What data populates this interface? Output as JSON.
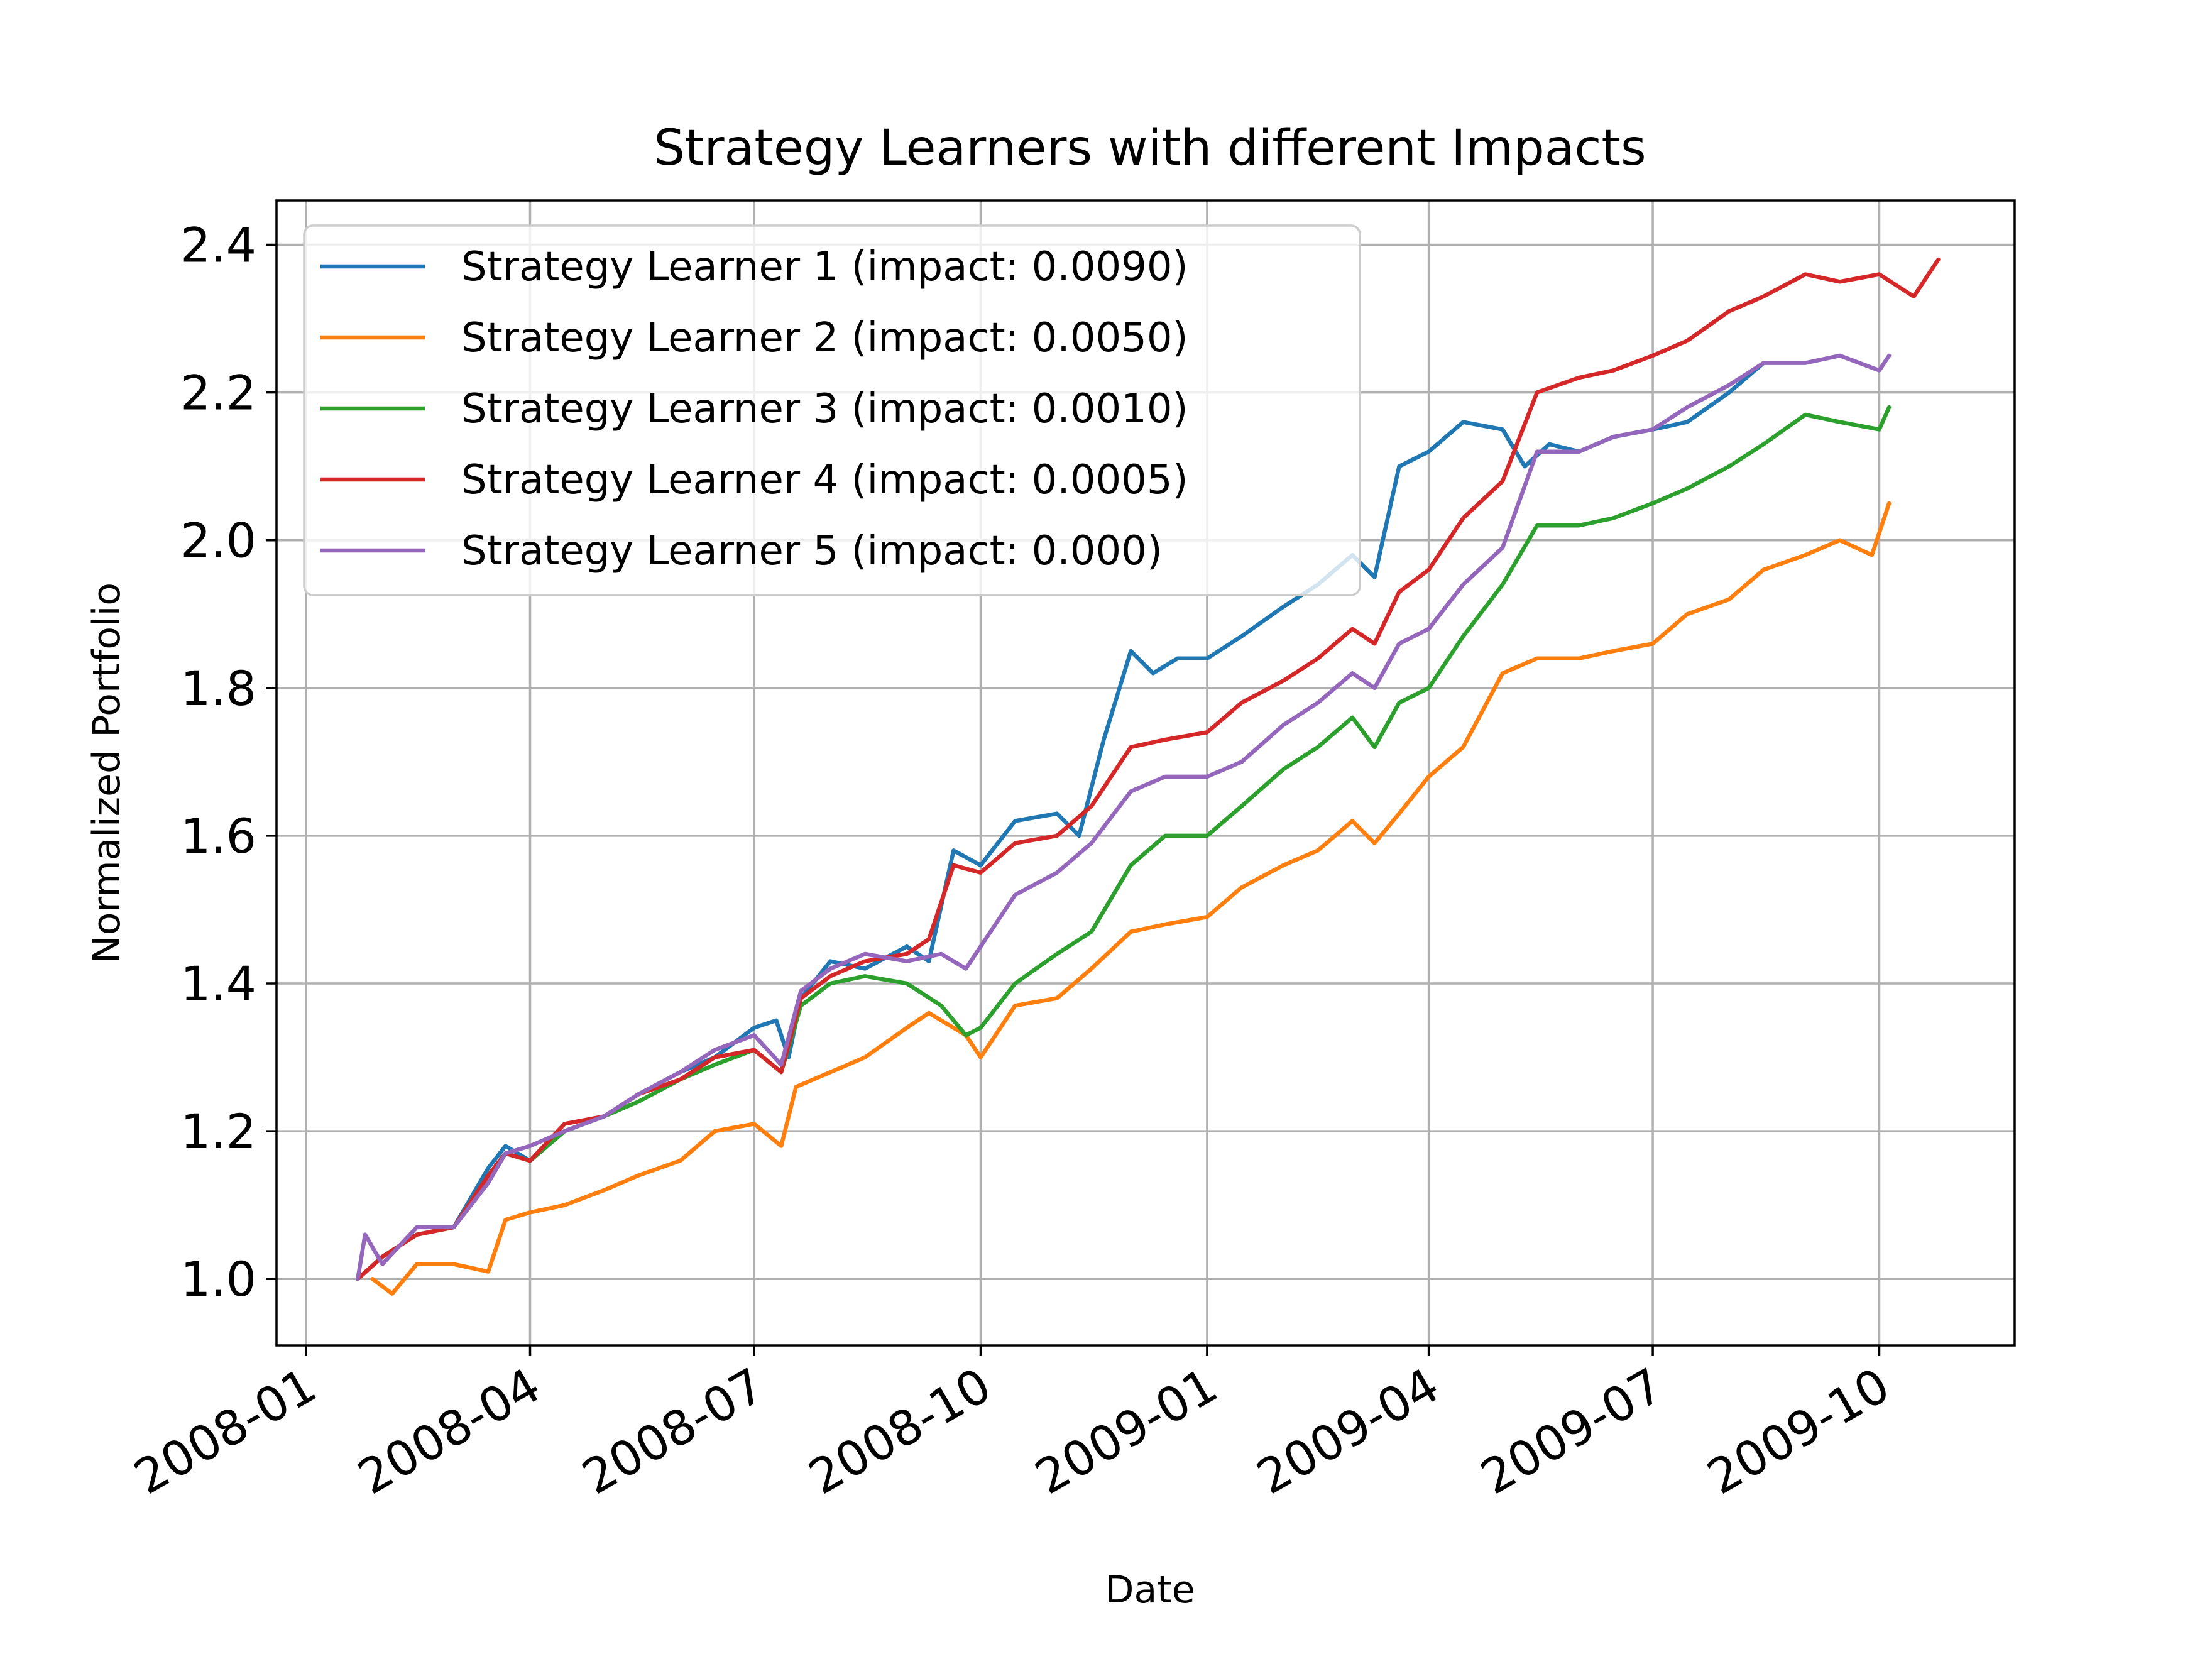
{
  "chart_data": {
    "type": "line",
    "title": "Strategy Learners with different Impacts",
    "xlabel": "Date",
    "ylabel": "Normalized Portfolio",
    "x_axis_type": "date",
    "xlim": [
      "2007-12-20",
      "2009-11-25"
    ],
    "ylim": [
      0.91,
      2.46
    ],
    "xticks": [
      "2008-01",
      "2008-04",
      "2008-07",
      "2008-10",
      "2009-01",
      "2009-04",
      "2009-07",
      "2009-10"
    ],
    "yticks": [
      1.0,
      1.2,
      1.4,
      1.6,
      1.8,
      2.0,
      2.2,
      2.4
    ],
    "ytick_labels": [
      "1.0",
      "1.2",
      "1.4",
      "1.6",
      "1.8",
      "2.0",
      "2.2",
      "2.4"
    ],
    "grid": true,
    "legend_position": "upper-left",
    "series": [
      {
        "name": "Strategy Learner 1 (impact: 0.0090)",
        "color": "#1f77b4",
        "points": [
          [
            "2008-01-22",
            1.0
          ],
          [
            "2008-02-01",
            1.03
          ],
          [
            "2008-02-15",
            1.06
          ],
          [
            "2008-03-01",
            1.07
          ],
          [
            "2008-03-15",
            1.15
          ],
          [
            "2008-03-22",
            1.18
          ],
          [
            "2008-04-01",
            1.16
          ],
          [
            "2008-04-15",
            1.2
          ],
          [
            "2008-05-01",
            1.22
          ],
          [
            "2008-05-15",
            1.25
          ],
          [
            "2008-06-01",
            1.28
          ],
          [
            "2008-06-15",
            1.3
          ],
          [
            "2008-07-01",
            1.34
          ],
          [
            "2008-07-10",
            1.35
          ],
          [
            "2008-07-15",
            1.3
          ],
          [
            "2008-07-20",
            1.38
          ],
          [
            "2008-08-01",
            1.43
          ],
          [
            "2008-08-15",
            1.42
          ],
          [
            "2008-09-01",
            1.45
          ],
          [
            "2008-09-10",
            1.43
          ],
          [
            "2008-09-20",
            1.58
          ],
          [
            "2008-10-01",
            1.56
          ],
          [
            "2008-10-15",
            1.62
          ],
          [
            "2008-11-01",
            1.63
          ],
          [
            "2008-11-10",
            1.6
          ],
          [
            "2008-11-20",
            1.73
          ],
          [
            "2008-12-01",
            1.85
          ],
          [
            "2008-12-10",
            1.82
          ],
          [
            "2008-12-20",
            1.84
          ],
          [
            "2009-01-01",
            1.84
          ],
          [
            "2009-01-15",
            1.87
          ],
          [
            "2009-02-01",
            1.91
          ],
          [
            "2009-02-15",
            1.94
          ],
          [
            "2009-03-01",
            1.98
          ],
          [
            "2009-03-10",
            1.95
          ],
          [
            "2009-03-20",
            2.1
          ],
          [
            "2009-04-01",
            2.12
          ],
          [
            "2009-04-15",
            2.16
          ],
          [
            "2009-05-01",
            2.15
          ],
          [
            "2009-05-10",
            2.1
          ],
          [
            "2009-05-20",
            2.13
          ],
          [
            "2009-06-01",
            2.12
          ],
          [
            "2009-06-15",
            2.14
          ],
          [
            "2009-07-01",
            2.15
          ],
          [
            "2009-07-15",
            2.16
          ],
          [
            "2009-08-01",
            2.2
          ],
          [
            "2009-08-15",
            2.24
          ]
        ]
      },
      {
        "name": "Strategy Learner 2 (impact: 0.0050)",
        "color": "#ff7f0e",
        "points": [
          [
            "2008-01-28",
            1.0
          ],
          [
            "2008-02-05",
            0.98
          ],
          [
            "2008-02-15",
            1.02
          ],
          [
            "2008-03-01",
            1.02
          ],
          [
            "2008-03-15",
            1.01
          ],
          [
            "2008-03-22",
            1.08
          ],
          [
            "2008-04-01",
            1.09
          ],
          [
            "2008-04-15",
            1.1
          ],
          [
            "2008-05-01",
            1.12
          ],
          [
            "2008-05-15",
            1.14
          ],
          [
            "2008-06-01",
            1.16
          ],
          [
            "2008-06-15",
            1.2
          ],
          [
            "2008-07-01",
            1.21
          ],
          [
            "2008-07-12",
            1.18
          ],
          [
            "2008-07-18",
            1.26
          ],
          [
            "2008-08-01",
            1.28
          ],
          [
            "2008-08-15",
            1.3
          ],
          [
            "2008-09-01",
            1.34
          ],
          [
            "2008-09-10",
            1.36
          ],
          [
            "2008-09-25",
            1.33
          ],
          [
            "2008-10-01",
            1.3
          ],
          [
            "2008-10-15",
            1.37
          ],
          [
            "2008-11-01",
            1.38
          ],
          [
            "2008-11-15",
            1.42
          ],
          [
            "2008-12-01",
            1.47
          ],
          [
            "2008-12-15",
            1.48
          ],
          [
            "2009-01-01",
            1.49
          ],
          [
            "2009-01-15",
            1.53
          ],
          [
            "2009-02-01",
            1.56
          ],
          [
            "2009-02-15",
            1.58
          ],
          [
            "2009-03-01",
            1.62
          ],
          [
            "2009-03-10",
            1.59
          ],
          [
            "2009-03-20",
            1.63
          ],
          [
            "2009-04-01",
            1.68
          ],
          [
            "2009-04-15",
            1.72
          ],
          [
            "2009-05-01",
            1.82
          ],
          [
            "2009-05-15",
            1.84
          ],
          [
            "2009-06-01",
            1.84
          ],
          [
            "2009-06-15",
            1.85
          ],
          [
            "2009-07-01",
            1.86
          ],
          [
            "2009-07-15",
            1.9
          ],
          [
            "2009-08-01",
            1.92
          ],
          [
            "2009-08-15",
            1.96
          ],
          [
            "2009-09-01",
            1.98
          ],
          [
            "2009-09-15",
            2.0
          ],
          [
            "2009-09-28",
            1.98
          ],
          [
            "2009-10-05",
            2.05
          ]
        ]
      },
      {
        "name": "Strategy Learner 3 (impact: 0.0010)",
        "color": "#2ca02c",
        "points": [
          [
            "2008-01-22",
            1.0
          ],
          [
            "2008-02-01",
            1.03
          ],
          [
            "2008-02-15",
            1.06
          ],
          [
            "2008-03-01",
            1.07
          ],
          [
            "2008-03-15",
            1.14
          ],
          [
            "2008-03-22",
            1.17
          ],
          [
            "2008-04-01",
            1.16
          ],
          [
            "2008-04-15",
            1.2
          ],
          [
            "2008-05-01",
            1.22
          ],
          [
            "2008-05-15",
            1.24
          ],
          [
            "2008-06-01",
            1.27
          ],
          [
            "2008-06-15",
            1.29
          ],
          [
            "2008-07-01",
            1.31
          ],
          [
            "2008-07-12",
            1.28
          ],
          [
            "2008-07-20",
            1.37
          ],
          [
            "2008-08-01",
            1.4
          ],
          [
            "2008-08-15",
            1.41
          ],
          [
            "2008-09-01",
            1.4
          ],
          [
            "2008-09-15",
            1.37
          ],
          [
            "2008-09-25",
            1.33
          ],
          [
            "2008-10-01",
            1.34
          ],
          [
            "2008-10-15",
            1.4
          ],
          [
            "2008-11-01",
            1.44
          ],
          [
            "2008-11-15",
            1.47
          ],
          [
            "2008-12-01",
            1.56
          ],
          [
            "2008-12-15",
            1.6
          ],
          [
            "2009-01-01",
            1.6
          ],
          [
            "2009-01-15",
            1.64
          ],
          [
            "2009-02-01",
            1.69
          ],
          [
            "2009-02-15",
            1.72
          ],
          [
            "2009-03-01",
            1.76
          ],
          [
            "2009-03-10",
            1.72
          ],
          [
            "2009-03-20",
            1.78
          ],
          [
            "2009-04-01",
            1.8
          ],
          [
            "2009-04-15",
            1.87
          ],
          [
            "2009-05-01",
            1.94
          ],
          [
            "2009-05-15",
            2.02
          ],
          [
            "2009-06-01",
            2.02
          ],
          [
            "2009-06-15",
            2.03
          ],
          [
            "2009-07-01",
            2.05
          ],
          [
            "2009-07-15",
            2.07
          ],
          [
            "2009-08-01",
            2.1
          ],
          [
            "2009-08-15",
            2.13
          ],
          [
            "2009-09-01",
            2.17
          ],
          [
            "2009-09-15",
            2.16
          ],
          [
            "2009-10-01",
            2.15
          ],
          [
            "2009-10-05",
            2.18
          ]
        ]
      },
      {
        "name": "Strategy Learner 4 (impact: 0.0005)",
        "color": "#d62728",
        "points": [
          [
            "2008-01-22",
            1.0
          ],
          [
            "2008-02-01",
            1.03
          ],
          [
            "2008-02-15",
            1.06
          ],
          [
            "2008-03-01",
            1.07
          ],
          [
            "2008-03-15",
            1.14
          ],
          [
            "2008-03-22",
            1.17
          ],
          [
            "2008-04-01",
            1.16
          ],
          [
            "2008-04-15",
            1.21
          ],
          [
            "2008-05-01",
            1.22
          ],
          [
            "2008-05-15",
            1.25
          ],
          [
            "2008-06-01",
            1.27
          ],
          [
            "2008-06-15",
            1.3
          ],
          [
            "2008-07-01",
            1.31
          ],
          [
            "2008-07-12",
            1.28
          ],
          [
            "2008-07-20",
            1.38
          ],
          [
            "2008-08-01",
            1.41
          ],
          [
            "2008-08-15",
            1.43
          ],
          [
            "2008-09-01",
            1.44
          ],
          [
            "2008-09-10",
            1.46
          ],
          [
            "2008-09-20",
            1.56
          ],
          [
            "2008-10-01",
            1.55
          ],
          [
            "2008-10-15",
            1.59
          ],
          [
            "2008-11-01",
            1.6
          ],
          [
            "2008-11-15",
            1.64
          ],
          [
            "2008-12-01",
            1.72
          ],
          [
            "2008-12-15",
            1.73
          ],
          [
            "2009-01-01",
            1.74
          ],
          [
            "2009-01-15",
            1.78
          ],
          [
            "2009-02-01",
            1.81
          ],
          [
            "2009-02-15",
            1.84
          ],
          [
            "2009-03-01",
            1.88
          ],
          [
            "2009-03-10",
            1.86
          ],
          [
            "2009-03-20",
            1.93
          ],
          [
            "2009-04-01",
            1.96
          ],
          [
            "2009-04-15",
            2.03
          ],
          [
            "2009-05-01",
            2.08
          ],
          [
            "2009-05-15",
            2.2
          ],
          [
            "2009-06-01",
            2.22
          ],
          [
            "2009-06-15",
            2.23
          ],
          [
            "2009-07-01",
            2.25
          ],
          [
            "2009-07-15",
            2.27
          ],
          [
            "2009-08-01",
            2.31
          ],
          [
            "2009-08-15",
            2.33
          ],
          [
            "2009-09-01",
            2.36
          ],
          [
            "2009-09-15",
            2.35
          ],
          [
            "2009-10-01",
            2.36
          ],
          [
            "2009-10-15",
            2.33
          ],
          [
            "2009-10-25",
            2.38
          ]
        ]
      },
      {
        "name": "Strategy Learner 5 (impact: 0.000)",
        "color": "#9467bd",
        "points": [
          [
            "2008-01-22",
            1.0
          ],
          [
            "2008-01-25",
            1.06
          ],
          [
            "2008-02-01",
            1.02
          ],
          [
            "2008-02-15",
            1.07
          ],
          [
            "2008-03-01",
            1.07
          ],
          [
            "2008-03-15",
            1.13
          ],
          [
            "2008-03-22",
            1.17
          ],
          [
            "2008-04-01",
            1.18
          ],
          [
            "2008-04-15",
            1.2
          ],
          [
            "2008-05-01",
            1.22
          ],
          [
            "2008-05-15",
            1.25
          ],
          [
            "2008-06-01",
            1.28
          ],
          [
            "2008-06-15",
            1.31
          ],
          [
            "2008-07-01",
            1.33
          ],
          [
            "2008-07-12",
            1.29
          ],
          [
            "2008-07-20",
            1.39
          ],
          [
            "2008-08-01",
            1.42
          ],
          [
            "2008-08-15",
            1.44
          ],
          [
            "2008-09-01",
            1.43
          ],
          [
            "2008-09-15",
            1.44
          ],
          [
            "2008-09-25",
            1.42
          ],
          [
            "2008-10-01",
            1.45
          ],
          [
            "2008-10-15",
            1.52
          ],
          [
            "2008-11-01",
            1.55
          ],
          [
            "2008-11-15",
            1.59
          ],
          [
            "2008-12-01",
            1.66
          ],
          [
            "2008-12-15",
            1.68
          ],
          [
            "2009-01-01",
            1.68
          ],
          [
            "2009-01-15",
            1.7
          ],
          [
            "2009-02-01",
            1.75
          ],
          [
            "2009-02-15",
            1.78
          ],
          [
            "2009-03-01",
            1.82
          ],
          [
            "2009-03-10",
            1.8
          ],
          [
            "2009-03-20",
            1.86
          ],
          [
            "2009-04-01",
            1.88
          ],
          [
            "2009-04-15",
            1.94
          ],
          [
            "2009-05-01",
            1.99
          ],
          [
            "2009-05-15",
            2.12
          ],
          [
            "2009-06-01",
            2.12
          ],
          [
            "2009-06-15",
            2.14
          ],
          [
            "2009-07-01",
            2.15
          ],
          [
            "2009-07-15",
            2.18
          ],
          [
            "2009-08-01",
            2.21
          ],
          [
            "2009-08-15",
            2.24
          ],
          [
            "2009-09-01",
            2.24
          ],
          [
            "2009-09-15",
            2.25
          ],
          [
            "2009-10-01",
            2.23
          ],
          [
            "2009-10-05",
            2.25
          ]
        ]
      }
    ]
  }
}
